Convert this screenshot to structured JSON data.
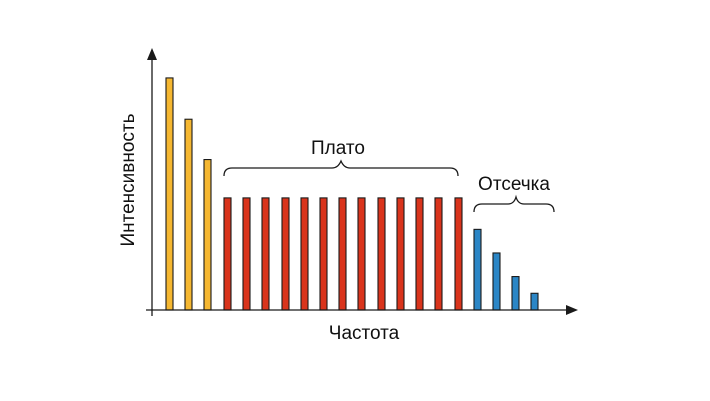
{
  "chart_data": {
    "type": "bar",
    "xlabel": "Частота",
    "ylabel": "Интенсивность",
    "ylim": [
      0,
      240
    ],
    "grid": false,
    "series": [
      {
        "color": "#f5b731",
        "values": [
          236,
          194,
          153
        ]
      },
      {
        "color": "#d9341c",
        "values": [
          114,
          114,
          114,
          114,
          114,
          114,
          114,
          114,
          114,
          114,
          114,
          114,
          114
        ]
      },
      {
        "color": "#2b86c6",
        "values": [
          82,
          58,
          34,
          17
        ]
      }
    ],
    "annotations": {
      "plateau": "Плато",
      "cutoff": "Отсечка"
    }
  }
}
